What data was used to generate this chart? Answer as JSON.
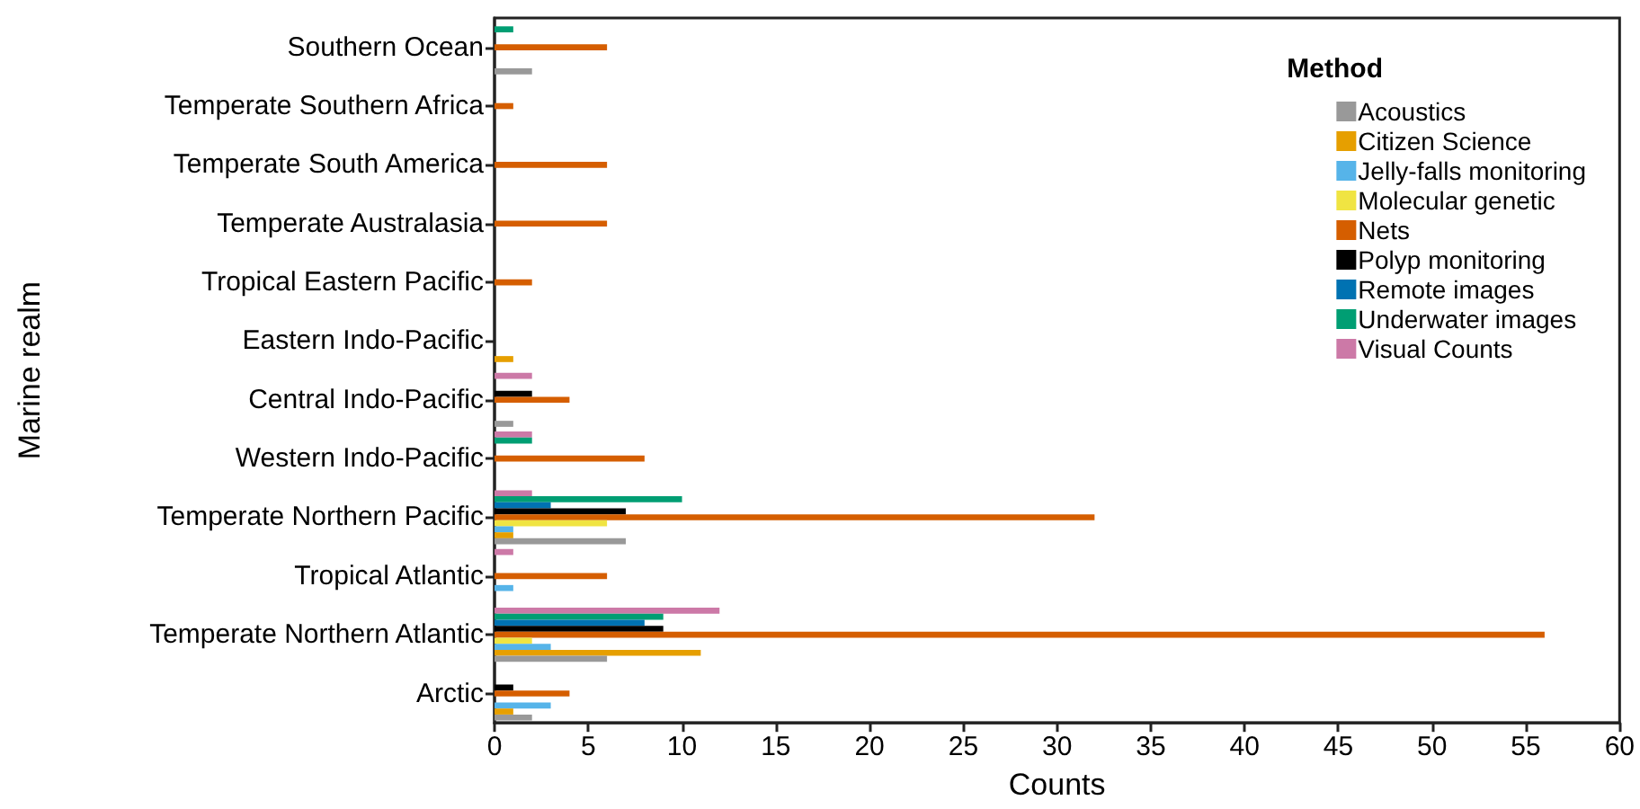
{
  "chart_data": {
    "type": "bar",
    "orientation": "horizontal",
    "xlabel": "Counts",
    "ylabel": "Marine realm",
    "legend_title": "Method",
    "legend": "top right",
    "grid": false,
    "categories": [
      "Southern Ocean",
      "Temperate Southern Africa",
      "Temperate South America",
      "Temperate Australasia",
      "Tropical Eastern Pacific",
      "Eastern Indo-Pacific",
      "Central Indo-Pacific",
      "Western Indo-Pacific",
      "Temperate Northern Pacific",
      "Tropical Atlantic",
      "Temperate Northern Atlantic",
      "Arctic"
    ],
    "xlim": [
      0,
      60
    ],
    "xticks": [
      0,
      5,
      10,
      15,
      20,
      25,
      30,
      35,
      40,
      45,
      50,
      55,
      60
    ],
    "series": [
      {
        "name": "Acoustics",
        "color": "#999999",
        "values": [
          2,
          0,
          0,
          0,
          0,
          0,
          1,
          0,
          7,
          0,
          6,
          2
        ]
      },
      {
        "name": "Citizen Science",
        "color": "#e69f00",
        "values": [
          0,
          0,
          0,
          0,
          0,
          1,
          0,
          0,
          1,
          0,
          11,
          1
        ]
      },
      {
        "name": "Jelly-falls monitoring",
        "color": "#56b4e9",
        "values": [
          0,
          0,
          0,
          0,
          0,
          0,
          0,
          0,
          1,
          1,
          3,
          3
        ]
      },
      {
        "name": "Molecular genetic",
        "color": "#f0e442",
        "values": [
          0,
          0,
          0,
          0,
          0,
          0,
          0,
          0,
          6,
          0,
          2,
          0
        ]
      },
      {
        "name": "Nets",
        "color": "#d55e00",
        "values": [
          6,
          1,
          6,
          6,
          2,
          0,
          4,
          8,
          32,
          6,
          56,
          4
        ]
      },
      {
        "name": "Polyp monitoring",
        "color": "#000000",
        "values": [
          0,
          0,
          0,
          0,
          0,
          0,
          2,
          0,
          7,
          0,
          9,
          1
        ]
      },
      {
        "name": "Remote images",
        "color": "#0072b2",
        "values": [
          0,
          0,
          0,
          0,
          0,
          0,
          0,
          0,
          3,
          0,
          8,
          0
        ]
      },
      {
        "name": "Underwater images",
        "color": "#009e73",
        "values": [
          1,
          0,
          0,
          0,
          0,
          0,
          0,
          2,
          10,
          0,
          9,
          0
        ]
      },
      {
        "name": "Visual Counts",
        "color": "#cc79a7",
        "values": [
          0,
          0,
          0,
          0,
          0,
          0,
          2,
          2,
          2,
          1,
          12,
          0
        ]
      }
    ]
  }
}
